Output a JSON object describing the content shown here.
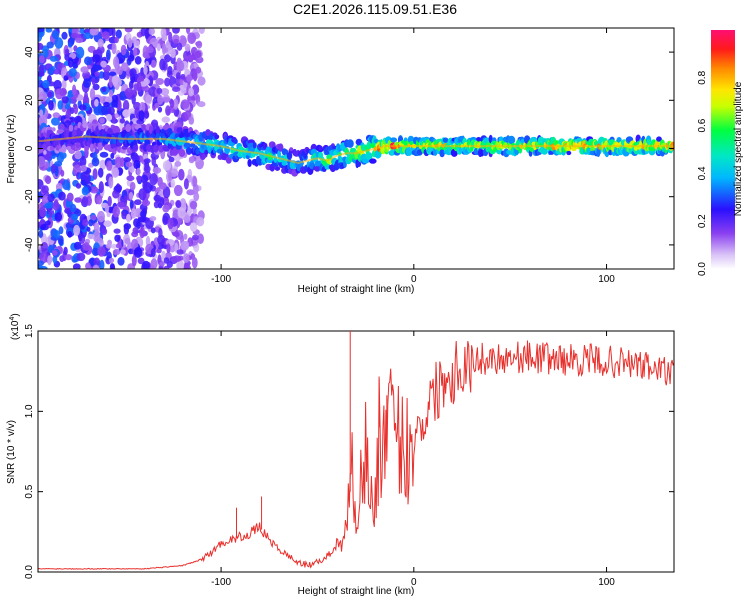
{
  "figure": {
    "title": "C2E1.2026.115.09.51.E36"
  },
  "chart_data": [
    {
      "type": "heatmap",
      "title": "C2E1.2026.115.09.51.E36",
      "xlabel": "Height of straight line (km)",
      "ylabel": "Frequency (Hz)",
      "xlim": [
        -195,
        135
      ],
      "ylim": [
        -50,
        50
      ],
      "x_ticks": [
        -100,
        0,
        100
      ],
      "x_tick_labels": [
        "-100",
        "0",
        "100"
      ],
      "y_ticks": [
        -40,
        -20,
        0,
        20,
        40
      ],
      "y_tick_labels": [
        "-40",
        "-20",
        "0",
        "20",
        "40"
      ],
      "colorbar": {
        "label": "Normalized spectral amplitude",
        "range": [
          0,
          1
        ],
        "ticks": [
          0.0,
          0.2,
          0.4,
          0.6,
          0.8
        ],
        "tick_labels": [
          "0.0",
          "0.2",
          "0.4",
          "0.6",
          "0.8"
        ]
      },
      "ridge": {
        "x": [
          -195,
          -170,
          -150,
          -130,
          -120,
          -110,
          -100,
          -90,
          -80,
          -70,
          -60,
          -55,
          -50,
          -45,
          -40,
          -35,
          -30,
          -25,
          -20,
          -15,
          -10,
          -5,
          0,
          20,
          40,
          60,
          80,
          100,
          120,
          135
        ],
        "y": [
          3,
          5,
          4,
          4,
          3,
          2,
          1,
          -1,
          -2,
          -4,
          -6,
          -5,
          -4,
          -5,
          -3,
          -2,
          -2,
          -1,
          0,
          1,
          1,
          1,
          1,
          1,
          1,
          1,
          1,
          1,
          1,
          1
        ],
        "amplitude": [
          0.25,
          0.3,
          0.35,
          0.4,
          0.45,
          0.5,
          0.5,
          0.55,
          0.55,
          0.5,
          0.45,
          0.5,
          0.55,
          0.65,
          0.6,
          0.65,
          0.7,
          0.75,
          0.85,
          0.9,
          0.9,
          0.85,
          0.8,
          0.75,
          0.75,
          0.8,
          0.85,
          0.85,
          0.8,
          0.8
        ]
      },
      "noise_extent_x": [
        -195,
        -110
      ],
      "noise_extent_y": [
        -50,
        50
      ]
    },
    {
      "type": "line",
      "xlabel": "Height of straight line (km)",
      "ylabel": "SNR (10 * v/v)",
      "y_multiplier_label": "(x10^4)",
      "y_multiplier_base": "(x10",
      "y_multiplier_exp": "4",
      "y_multiplier_close": ")",
      "xlim": [
        -195,
        135
      ],
      "ylim": [
        0,
        1.5
      ],
      "x_ticks": [
        -100,
        0,
        100
      ],
      "x_tick_labels": [
        "-100",
        "0",
        "100"
      ],
      "y_ticks": [
        0,
        0.5,
        1.0,
        1.5
      ],
      "y_tick_labels": [
        "0.0",
        "0.5",
        "1.0",
        "1.5"
      ],
      "series": [
        {
          "name": "SNR",
          "color": "#e8302c",
          "x": [
            -195,
            -180,
            -160,
            -140,
            -130,
            -120,
            -112,
            -105,
            -100,
            -95,
            -90,
            -85,
            -80,
            -75,
            -70,
            -65,
            -60,
            -55,
            -50,
            -45,
            -40,
            -35,
            -32,
            -30,
            -28,
            -25,
            -22,
            -20,
            -18,
            -15,
            -12,
            -10,
            -8,
            -5,
            -3,
            0,
            3,
            5,
            8,
            10,
            15,
            20,
            25,
            30,
            40,
            50,
            60,
            70,
            80,
            90,
            100,
            110,
            120,
            130,
            135
          ],
          "y": [
            0.02,
            0.02,
            0.02,
            0.02,
            0.03,
            0.04,
            0.07,
            0.12,
            0.18,
            0.2,
            0.22,
            0.24,
            0.28,
            0.2,
            0.14,
            0.1,
            0.06,
            0.04,
            0.06,
            0.1,
            0.15,
            0.3,
            0.6,
            0.4,
            0.55,
            0.75,
            0.45,
            0.4,
            0.9,
            0.8,
            0.95,
            0.7,
            0.9,
            0.7,
            0.8,
            0.85,
            0.9,
            0.95,
            1.05,
            1.1,
            1.2,
            1.25,
            1.3,
            1.32,
            1.33,
            1.34,
            1.34,
            1.33,
            1.32,
            1.32,
            1.31,
            1.3,
            1.28,
            1.25,
            1.23
          ]
        }
      ],
      "spikes": [
        {
          "x": -33,
          "y": 1.5
        },
        {
          "x": -18,
          "y": 1.2
        },
        {
          "x": -14,
          "y": 1.1
        },
        {
          "x": -79,
          "y": 0.47
        },
        {
          "x": -92,
          "y": 0.4
        }
      ]
    }
  ]
}
